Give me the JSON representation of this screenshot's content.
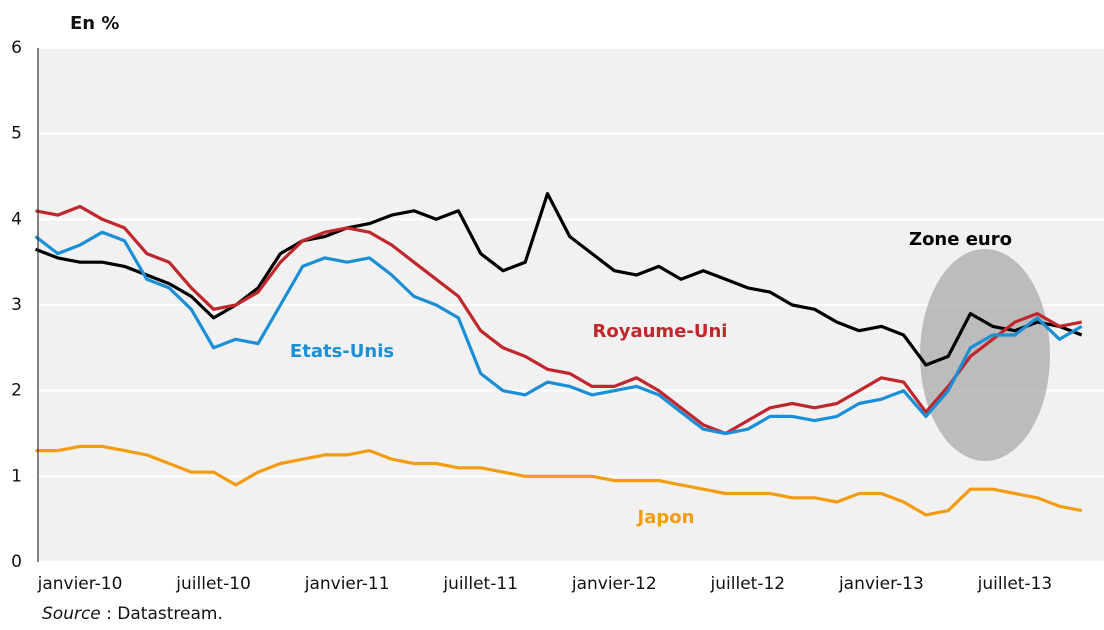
{
  "chart_data": {
    "type": "line",
    "ylabel": "En %",
    "source_label": "Source",
    "source_text": " : Datastream.",
    "categories": [
      null,
      null,
      "janvier-10",
      null,
      null,
      null,
      null,
      null,
      "juillet-10",
      null,
      null,
      null,
      null,
      null,
      "janvier-11",
      null,
      null,
      null,
      null,
      null,
      "juillet-11",
      null,
      null,
      null,
      null,
      null,
      "janvier-12",
      null,
      null,
      null,
      null,
      null,
      "juillet-12",
      null,
      null,
      null,
      null,
      null,
      "janvier-13",
      null,
      null,
      null,
      null,
      null,
      "juillet-13",
      null,
      null,
      null
    ],
    "ylim": [
      0,
      6
    ],
    "yticks": [
      0,
      1,
      2,
      3,
      4,
      5,
      6
    ],
    "grid": true,
    "series": [
      {
        "name": "Zone euro",
        "color": "#000000",
        "values": [
          3.65,
          3.55,
          3.5,
          3.5,
          3.45,
          3.35,
          3.25,
          3.1,
          2.85,
          3.0,
          3.2,
          3.6,
          3.75,
          3.8,
          3.9,
          3.95,
          4.05,
          4.1,
          4.0,
          4.1,
          3.6,
          3.4,
          3.5,
          4.3,
          3.8,
          3.6,
          3.4,
          3.35,
          3.45,
          3.3,
          3.4,
          3.3,
          3.2,
          3.15,
          3.0,
          2.95,
          2.8,
          2.7,
          2.75,
          2.65,
          2.3,
          2.4,
          2.9,
          2.75,
          2.7,
          2.8,
          2.75,
          2.65
        ]
      },
      {
        "name": "Royaume-Uni",
        "color": "#c0272d",
        "values": [
          4.1,
          4.05,
          4.15,
          4.0,
          3.9,
          3.6,
          3.5,
          3.2,
          2.95,
          3.0,
          3.15,
          3.5,
          3.75,
          3.85,
          3.9,
          3.85,
          3.7,
          3.5,
          3.3,
          3.1,
          2.7,
          2.5,
          2.4,
          2.25,
          2.2,
          2.05,
          2.05,
          2.15,
          2.0,
          1.8,
          1.6,
          1.5,
          1.65,
          1.8,
          1.85,
          1.8,
          1.85,
          2.0,
          2.15,
          2.1,
          1.75,
          2.05,
          2.4,
          2.6,
          2.8,
          2.9,
          2.75,
          2.8
        ]
      },
      {
        "name": "Etats-Unis",
        "color": "#1b8fd6",
        "values": [
          3.8,
          3.6,
          3.7,
          3.85,
          3.75,
          3.3,
          3.2,
          2.95,
          2.5,
          2.6,
          2.55,
          3.0,
          3.45,
          3.55,
          3.5,
          3.55,
          3.35,
          3.1,
          3.0,
          2.85,
          2.2,
          2.0,
          1.95,
          2.1,
          2.05,
          1.95,
          2.0,
          2.05,
          1.95,
          1.75,
          1.55,
          1.5,
          1.55,
          1.7,
          1.7,
          1.65,
          1.7,
          1.85,
          1.9,
          2.0,
          1.7,
          2.0,
          2.5,
          2.65,
          2.65,
          2.85,
          2.6,
          2.75
        ]
      },
      {
        "name": "Japon",
        "color": "#f39c12",
        "values": [
          1.3,
          1.3,
          1.35,
          1.35,
          1.3,
          1.25,
          1.15,
          1.05,
          1.05,
          0.9,
          1.05,
          1.15,
          1.2,
          1.25,
          1.25,
          1.3,
          1.2,
          1.15,
          1.15,
          1.1,
          1.1,
          1.05,
          1.0,
          1.0,
          1.0,
          1.0,
          0.95,
          0.95,
          0.95,
          0.9,
          0.85,
          0.8,
          0.8,
          0.8,
          0.75,
          0.75,
          0.7,
          0.8,
          0.8,
          0.7,
          0.55,
          0.6,
          0.85,
          0.85,
          0.8,
          0.75,
          0.65,
          0.6
        ]
      }
    ]
  }
}
